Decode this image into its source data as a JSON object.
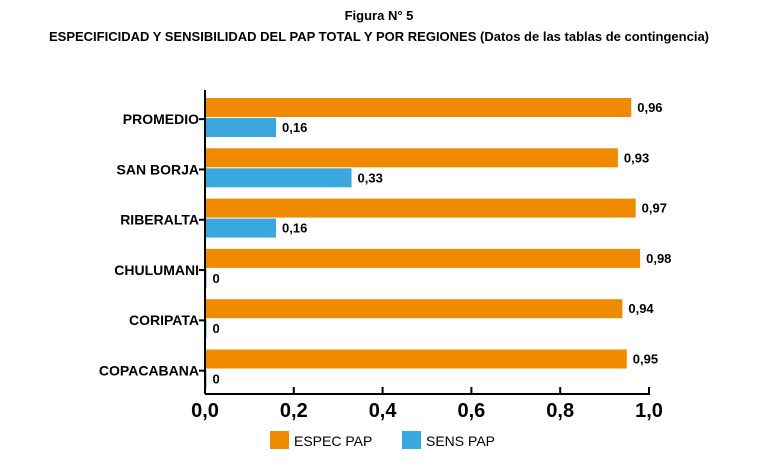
{
  "chart_data": {
    "type": "bar",
    "orientation": "horizontal",
    "title": "Figura N° 5",
    "subtitle": "ESPECIFICIDAD Y SENSIBILIDAD DEL PAP TOTAL Y POR REGIONES (Datos de las tablas de contingencia)",
    "categories": [
      "PROMEDIO",
      "SAN BORJA",
      "RIBERALTA",
      "CHULUMANI",
      "CORIPATA",
      "COPACABANA"
    ],
    "series": [
      {
        "name": "ESPEC PAP",
        "color": "#f08a00",
        "values": [
          0.96,
          0.93,
          0.97,
          0.98,
          0.94,
          0.95
        ],
        "labels": [
          "0,96",
          "0,93",
          "0,97",
          "0,98",
          "0,94",
          "0,95"
        ]
      },
      {
        "name": "SENS PAP",
        "color": "#3aa8dc",
        "values": [
          0.16,
          0.33,
          0.16,
          0,
          0,
          0
        ],
        "labels": [
          "0,16",
          "0,33",
          "0,16",
          "0",
          "0",
          "0"
        ]
      }
    ],
    "xlim": [
      0,
      1.0
    ],
    "xticks": [
      "0,0",
      "0,2",
      "0,4",
      "0,6",
      "0,8",
      "1,0"
    ],
    "grid": false,
    "legend": "bottom"
  }
}
